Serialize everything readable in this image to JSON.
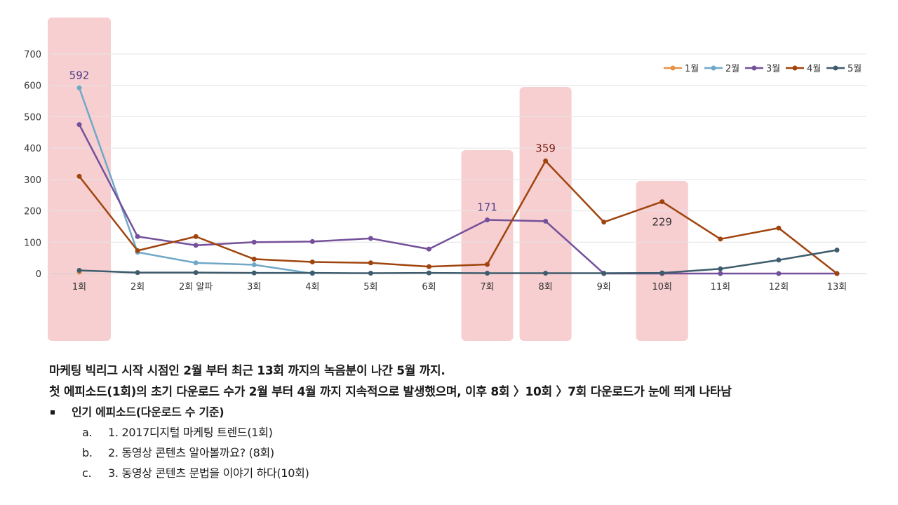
{
  "chart_data": {
    "type": "line",
    "categories": [
      "1회",
      "2회",
      "2회 알파",
      "3회",
      "4회",
      "5회",
      "6회",
      "7회",
      "8회",
      "9회",
      "10회",
      "11회",
      "12회",
      "13회"
    ],
    "ylim": [
      0,
      700
    ],
    "yticks": [
      0,
      100,
      200,
      300,
      400,
      500,
      600,
      700
    ],
    "grid": true,
    "legend_position": "top-right",
    "series": [
      {
        "name": "1월",
        "color": "#E8924A",
        "values": [
          4,
          null,
          null,
          null,
          null,
          null,
          null,
          null,
          null,
          null,
          null,
          null,
          null,
          null
        ]
      },
      {
        "name": "2월",
        "color": "#6FA8C7",
        "values": [
          592,
          68,
          34,
          28,
          0,
          null,
          null,
          null,
          null,
          null,
          null,
          null,
          null,
          null
        ]
      },
      {
        "name": "3월",
        "color": "#74509A",
        "values": [
          475,
          118,
          90,
          100,
          102,
          112,
          78,
          171,
          167,
          0,
          0,
          0,
          0,
          0
        ]
      },
      {
        "name": "4월",
        "color": "#A0440E",
        "values": [
          310,
          73,
          118,
          46,
          37,
          34,
          22,
          29,
          359,
          164,
          229,
          110,
          145,
          0
        ]
      },
      {
        "name": "5월",
        "color": "#3E5C6C",
        "values": [
          10,
          3,
          3,
          2,
          2,
          1,
          2,
          1,
          1,
          1,
          2,
          15,
          43,
          75
        ]
      }
    ],
    "highlights": [
      0,
      7,
      8,
      10
    ],
    "annotations": [
      {
        "category": 0,
        "value": 592,
        "text": "592",
        "color": "#4B3B8A"
      },
      {
        "category": 7,
        "value": 171,
        "text": "171",
        "color": "#4B3B8A"
      },
      {
        "category": 8,
        "value": 359,
        "text": "359",
        "color": "#7A1C10"
      },
      {
        "category": 10,
        "value": 229,
        "text": "229",
        "color": "#333333",
        "below": true
      }
    ]
  },
  "notes": {
    "line1": "마케팅 빅리그 시작 시점인 2월 부터 최근 13회 까지의 녹음분이 나간 5월 까지.",
    "line2": "첫 에피소드(1회)의 초기 다운로드 수가 2월 부터 4월 까지 지속적으로 발생했으며, 이후 8회 〉10회 〉7회 다운로드가 눈에 띄게 나타남",
    "bullet": "인기 에피소드(다운로드 수 기준)",
    "items": [
      {
        "marker": "a.",
        "text": "1. 2017디지털 마케팅 트렌드(1회)"
      },
      {
        "marker": "b.",
        "text": "2. 동영상 콘텐츠 알아볼까요? (8회)"
      },
      {
        "marker": "c.",
        "text": "3. 동영상 콘텐츠 문법을 이야기 하다(10회)"
      }
    ]
  }
}
